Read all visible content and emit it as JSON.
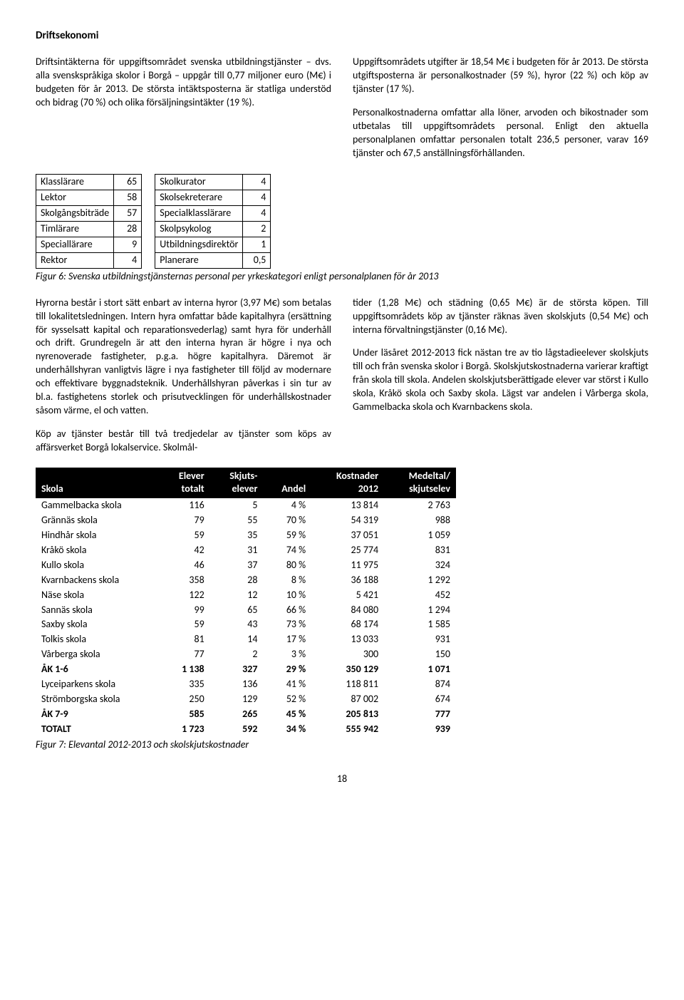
{
  "heading": "Driftsekonomi",
  "intro": {
    "left_p1": "Driftsintäkterna för uppgiftsområdet svenska ut­bildningstjänster – dvs. alla svenskspråkiga skolor i Borgå – uppgår till 0,77 miljoner euro (M€) i budgeten för år 2013. De största intäktsposterna är statliga understöd och bidrag (70 %) och olika försäljningsin­täkter (19 %).",
    "right_p1": "Uppgiftsområdets utgifter är 18,54 M€ i budgeten för år 2013. De största utgiftsposterna är personalkost­nader (59 %), hyror (22 %) och köp av tjänster (17 %).",
    "right_p2": "Personalkostnaderna omfattar alla löner, arvoden och bikostnader som utbetalas till uppgiftsområdets per­sonal. Enligt den aktuella personalplanen omfattar personalen totalt 236,5 personer, varav 169 tjänster och 67,5 anställningsförhållanden."
  },
  "staff_left": [
    {
      "role": "Klasslärare",
      "n": "65"
    },
    {
      "role": "Lektor",
      "n": "58"
    },
    {
      "role": "Skolgångsbiträde",
      "n": "57"
    },
    {
      "role": "Timlärare",
      "n": "28"
    },
    {
      "role": "Speciallärare",
      "n": "9"
    },
    {
      "role": "Rektor",
      "n": "4"
    }
  ],
  "staff_right": [
    {
      "role": "Skolkurator",
      "n": "4"
    },
    {
      "role": "Skolsekreterare",
      "n": "4"
    },
    {
      "role": "Specialklasslärare",
      "n": "4"
    },
    {
      "role": "Skolpsykolog",
      "n": "2"
    },
    {
      "role": "Utbildningsdirektör",
      "n": "1"
    },
    {
      "role": "Planerare",
      "n": "0,5"
    }
  ],
  "caption1": "Figur 6: Svenska utbildningstjänsternas personal per yrkeskategori enligt personalplanen för år 2013",
  "mid": {
    "left_p1": "Hyrorna består i stort sätt enbart av interna hyror (3,97 M€) som betalas till lokalitetsledningen. Intern hyra omfattar både kapitalhyra (ersättning för syssel­satt kapital och reparationsvederlag) samt hyra för underhåll och drift. Grundregeln är att den interna hyran är högre i nya och nyrenoverade fastigheter, p.g.a. högre kapitalhyra. Däremot är underhållshyran vanligtvis lägre i nya fastigheter till följd av moder­nare och effektivare byggnadsteknik. Underhållshyran påverkas i sin tur av bl.a. fastighetens storlek och prisutvecklingen för underhållskostnader såsom värme, el och vatten.",
    "left_p2": "Köp av tjänster består till två tredjedelar av tjänster som köps av affärsverket Borgå lokalservice. Skolmål-",
    "right_p1": "tider (1,28 M€) och städning (0,65 M€) är de största köpen. Till uppgiftsområdets köp av tjänster räknas även skolskjuts (0,54 M€) och interna förvaltnings­tjänster (0,16 M€).",
    "right_p2": "Under läsåret 2012-2013 fick nästan tre av tio lågsta­dieelever skolskjuts till och från svenska skolor i Borgå. Skolskjutskostnaderna varierar kraftigt från skola till skola. Andelen skolskjutsberättigade elever var störst i Kullo skola, Kråkö skola och Saxby skola. Lägst var andelen i Vårberga skola, Gammelbacka skola och Kvarnbackens skola."
  },
  "school_headers": {
    "c1a": "Skola",
    "c1b": "",
    "c2a": "Elever",
    "c2b": "totalt",
    "c3a": "Skjuts-",
    "c3b": "elever",
    "c4a": "Andel",
    "c4b": "",
    "c5a": "Kostnader",
    "c5b": "2012",
    "c6a": "Medeltal/",
    "c6b": "skjutselev"
  },
  "schools": [
    {
      "name": "Gammelbacka skola",
      "e": "116",
      "s": "5",
      "a": "4 %",
      "k": "13 814",
      "m": "2 763",
      "bold": false
    },
    {
      "name": "Grännäs skola",
      "e": "79",
      "s": "55",
      "a": "70 %",
      "k": "54 319",
      "m": "988",
      "bold": false
    },
    {
      "name": "Hindhår skola",
      "e": "59",
      "s": "35",
      "a": "59 %",
      "k": "37 051",
      "m": "1 059",
      "bold": false
    },
    {
      "name": "Kråkö skola",
      "e": "42",
      "s": "31",
      "a": "74 %",
      "k": "25 774",
      "m": "831",
      "bold": false
    },
    {
      "name": "Kullo skola",
      "e": "46",
      "s": "37",
      "a": "80 %",
      "k": "11 975",
      "m": "324",
      "bold": false
    },
    {
      "name": "Kvarnbackens skola",
      "e": "358",
      "s": "28",
      "a": "8 %",
      "k": "36 188",
      "m": "1 292",
      "bold": false
    },
    {
      "name": "Näse skola",
      "e": "122",
      "s": "12",
      "a": "10 %",
      "k": "5 421",
      "m": "452",
      "bold": false
    },
    {
      "name": "Sannäs skola",
      "e": "99",
      "s": "65",
      "a": "66 %",
      "k": "84 080",
      "m": "1 294",
      "bold": false
    },
    {
      "name": "Saxby skola",
      "e": "59",
      "s": "43",
      "a": "73 %",
      "k": "68 174",
      "m": "1 585",
      "bold": false
    },
    {
      "name": "Tolkis skola",
      "e": "81",
      "s": "14",
      "a": "17 %",
      "k": "13 033",
      "m": "931",
      "bold": false
    },
    {
      "name": "Vårberga skola",
      "e": "77",
      "s": "2",
      "a": "3 %",
      "k": "300",
      "m": "150",
      "bold": false
    },
    {
      "name": "ÅK 1-6",
      "e": "1 138",
      "s": "327",
      "a": "29 %",
      "k": "350 129",
      "m": "1 071",
      "bold": true
    },
    {
      "name": "Lyceiparkens skola",
      "e": "335",
      "s": "136",
      "a": "41 %",
      "k": "118 811",
      "m": "874",
      "bold": false
    },
    {
      "name": "Strömborgska skola",
      "e": "250",
      "s": "129",
      "a": "52 %",
      "k": "87 002",
      "m": "674",
      "bold": false
    },
    {
      "name": "ÅK 7-9",
      "e": "585",
      "s": "265",
      "a": "45 %",
      "k": "205 813",
      "m": "777",
      "bold": true
    },
    {
      "name": "TOTALT",
      "e": "1 723",
      "s": "592",
      "a": "34 %",
      "k": "555 942",
      "m": "939",
      "bold": true
    }
  ],
  "caption2": "Figur 7: Elevantal 2012-2013 och skolskjutskostnader",
  "pagenum": "18"
}
